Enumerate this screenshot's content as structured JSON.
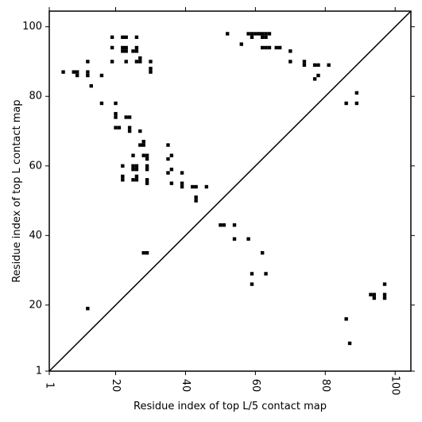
{
  "chart_data": {
    "type": "scatter",
    "title": "",
    "xlabel": "Residue index of top L/5 contact map",
    "ylabel": "Residue index of top L contact map",
    "xlim": [
      1,
      104.5
    ],
    "ylim": [
      1,
      104.5
    ],
    "x_ticks": [
      1,
      20,
      40,
      60,
      80,
      100
    ],
    "y_ticks": [
      1,
      20,
      40,
      60,
      80,
      100
    ],
    "x_tick_labels": [
      "1",
      "20",
      "40",
      "60",
      "80",
      "100"
    ],
    "y_tick_labels": [
      "1",
      "20",
      "40",
      "60",
      "80",
      "100"
    ],
    "grid": false,
    "diagonal": true,
    "marker": "square",
    "color": "#000000",
    "series": [
      {
        "points": [
          [
            52,
            98
          ],
          [
            58,
            98
          ],
          [
            59,
            98
          ],
          [
            60,
            98
          ],
          [
            61,
            98
          ],
          [
            62,
            98
          ],
          [
            63,
            98
          ],
          [
            64,
            98
          ],
          [
            59,
            97
          ],
          [
            62,
            97
          ],
          [
            63,
            97
          ],
          [
            56,
            95
          ],
          [
            62,
            94
          ],
          [
            63,
            94
          ],
          [
            64,
            94
          ],
          [
            66,
            94
          ],
          [
            67,
            94
          ],
          [
            70,
            93
          ],
          [
            70,
            90
          ],
          [
            74,
            90
          ],
          [
            74,
            89
          ],
          [
            77,
            89
          ],
          [
            78,
            89
          ],
          [
            81,
            89
          ],
          [
            78,
            86
          ],
          [
            77,
            85
          ],
          [
            89,
            81
          ],
          [
            86,
            78
          ],
          [
            89,
            78
          ],
          [
            19,
            97
          ],
          [
            22,
            97
          ],
          [
            23,
            97
          ],
          [
            26,
            97
          ],
          [
            19,
            94
          ],
          [
            22,
            94
          ],
          [
            23,
            94
          ],
          [
            22,
            93
          ],
          [
            23,
            93
          ],
          [
            25,
            93
          ],
          [
            26,
            94
          ],
          [
            26,
            93
          ],
          [
            19,
            90
          ],
          [
            23,
            90
          ],
          [
            26,
            90
          ],
          [
            27,
            90
          ],
          [
            27,
            91
          ],
          [
            30,
            90
          ],
          [
            30,
            88
          ],
          [
            30,
            87
          ],
          [
            5,
            87
          ],
          [
            8,
            87
          ],
          [
            9,
            87
          ],
          [
            9,
            86
          ],
          [
            12,
            90
          ],
          [
            12,
            87
          ],
          [
            12,
            86
          ],
          [
            16,
            86
          ],
          [
            13,
            83
          ],
          [
            16,
            78
          ],
          [
            20,
            78
          ],
          [
            20,
            75
          ],
          [
            20,
            74
          ],
          [
            23,
            74
          ],
          [
            24,
            74
          ],
          [
            20,
            71
          ],
          [
            21,
            71
          ],
          [
            24,
            71
          ],
          [
            24,
            70
          ],
          [
            27,
            70
          ],
          [
            27,
            66
          ],
          [
            28,
            66
          ],
          [
            28,
            67
          ],
          [
            35,
            66
          ],
          [
            25,
            63
          ],
          [
            28,
            63
          ],
          [
            29,
            63
          ],
          [
            29,
            62
          ],
          [
            35,
            62
          ],
          [
            36,
            63
          ],
          [
            22,
            60
          ],
          [
            25,
            60
          ],
          [
            26,
            60
          ],
          [
            25,
            59
          ],
          [
            26,
            59
          ],
          [
            29,
            60
          ],
          [
            29,
            59
          ],
          [
            36,
            59
          ],
          [
            35,
            58
          ],
          [
            39,
            58
          ],
          [
            22,
            57
          ],
          [
            22,
            56
          ],
          [
            25,
            56
          ],
          [
            26,
            56
          ],
          [
            26,
            57
          ],
          [
            29,
            56
          ],
          [
            29,
            55
          ],
          [
            36,
            55
          ],
          [
            39,
            55
          ],
          [
            39,
            54
          ],
          [
            42,
            54
          ],
          [
            43,
            54
          ],
          [
            46,
            54
          ],
          [
            43,
            51
          ],
          [
            43,
            50
          ],
          [
            28,
            35
          ],
          [
            29,
            35
          ],
          [
            50,
            43
          ],
          [
            51,
            43
          ],
          [
            54,
            43
          ],
          [
            54,
            39
          ],
          [
            58,
            39
          ],
          [
            62,
            35
          ],
          [
            59,
            29
          ],
          [
            63,
            29
          ],
          [
            59,
            26
          ],
          [
            12,
            19
          ],
          [
            93,
            23
          ],
          [
            94,
            23
          ],
          [
            94,
            22
          ],
          [
            97,
            26
          ],
          [
            97,
            23
          ],
          [
            97,
            22
          ],
          [
            86,
            16
          ],
          [
            87,
            9
          ]
        ]
      }
    ]
  }
}
